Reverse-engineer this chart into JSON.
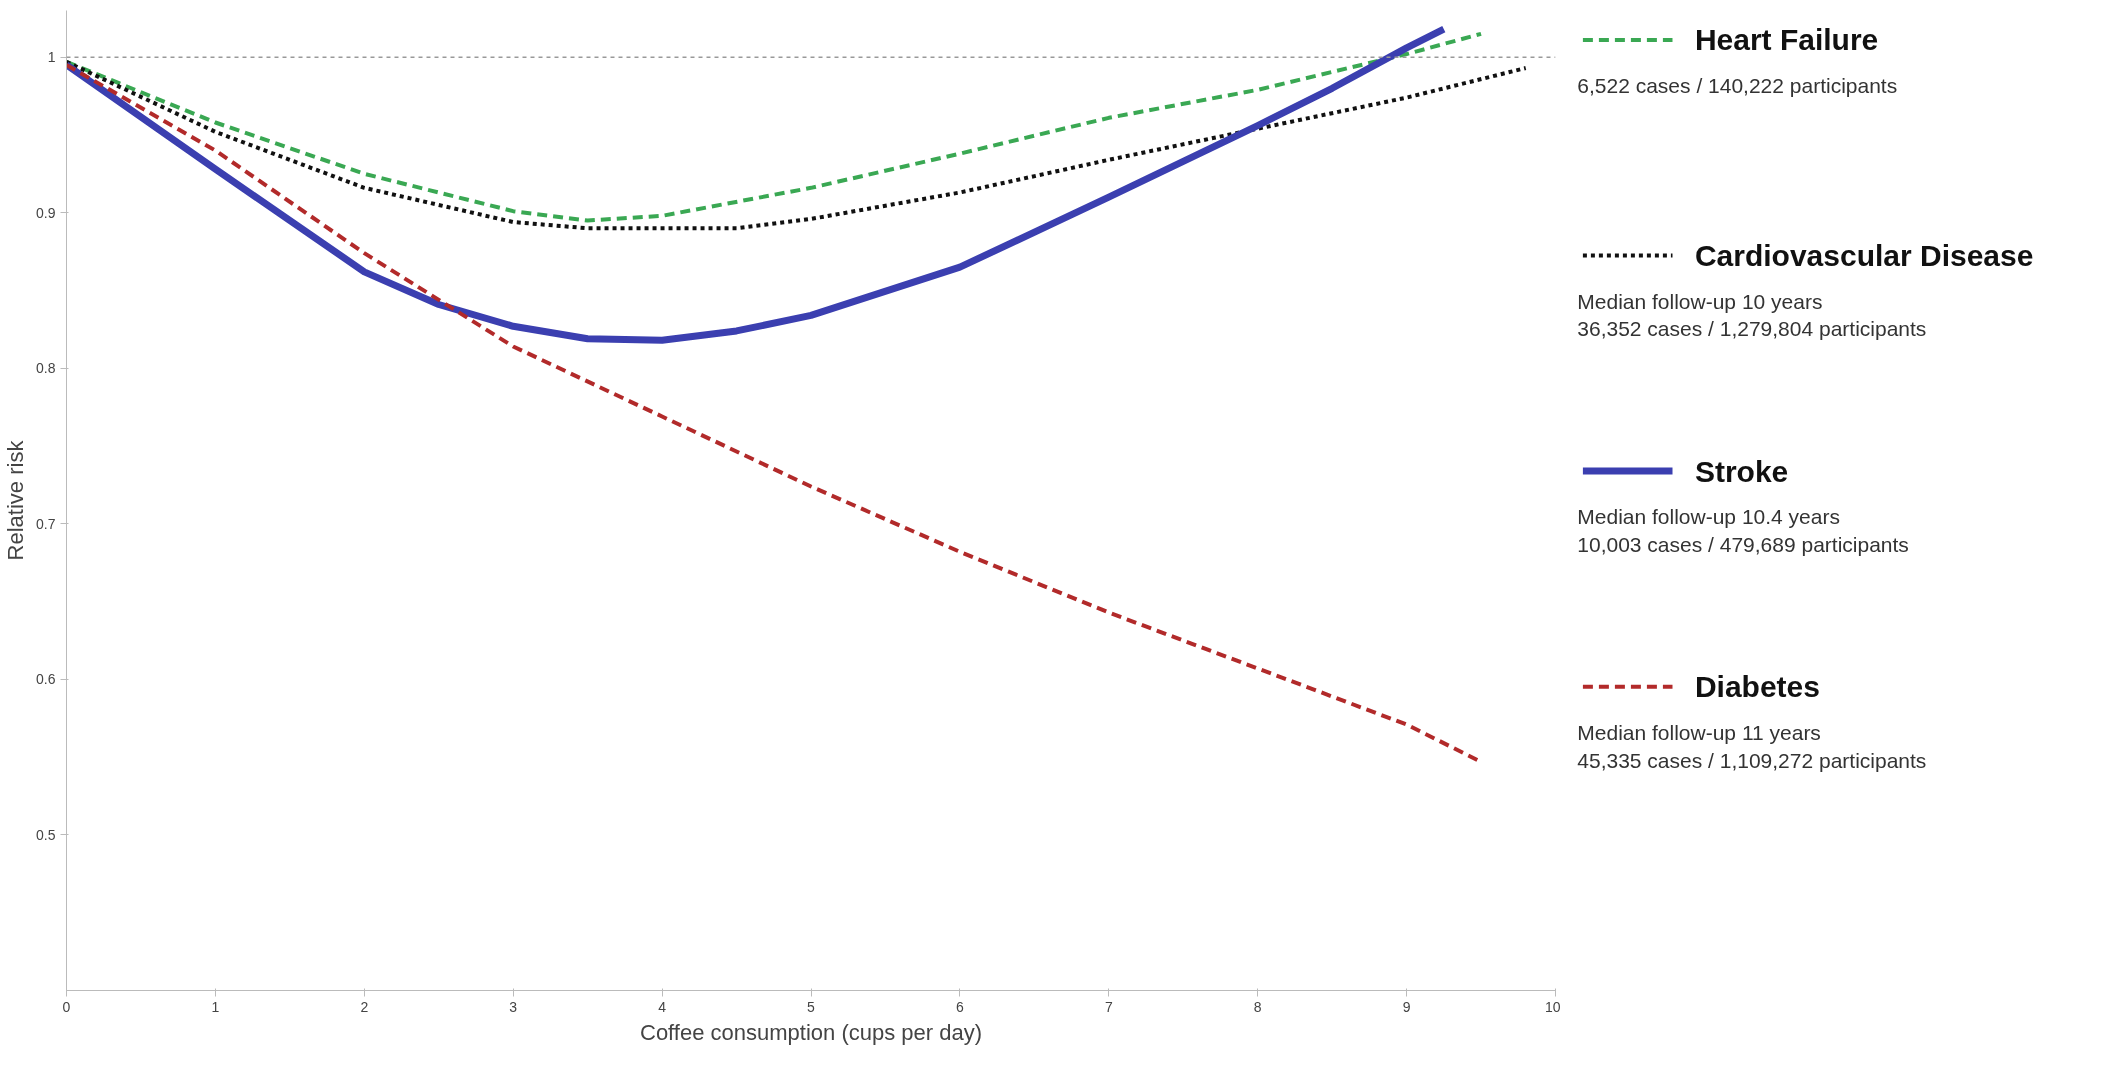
{
  "chart_data": {
    "type": "line",
    "xlabel": "Coffee consumption (cups per day)",
    "ylabel": "Relative risk",
    "xlim": [
      0,
      10
    ],
    "xticks": [
      0,
      1,
      2,
      3,
      4,
      5,
      6,
      7,
      8,
      9,
      10
    ],
    "ylim": [
      0.4,
      1.03
    ],
    "yticks": [
      0.5,
      0.6,
      0.7,
      0.8,
      0.9,
      1
    ],
    "grid": false,
    "legend": "right",
    "marker": "none",
    "ref_lines": [
      {
        "axis": "y",
        "value": 1,
        "label": null,
        "color": "#999999",
        "line_style": "dotted"
      }
    ],
    "series": [
      {
        "name": "Heart Failure",
        "color": "#3aa853",
        "line_style": "dashed",
        "x": [
          0,
          1,
          2,
          3,
          3.5,
          4,
          5,
          6,
          7,
          8,
          9,
          9.5
        ],
        "values": [
          0.997,
          0.958,
          0.925,
          0.901,
          0.895,
          0.898,
          0.916,
          0.938,
          0.961,
          0.979,
          1.002,
          1.015
        ]
      },
      {
        "name": "Cardiovascular Disease",
        "color": "#111111",
        "line_style": "dotted",
        "x": [
          0,
          1,
          2,
          3,
          3.5,
          4,
          4.5,
          5,
          6,
          7,
          8,
          9,
          9.8
        ],
        "values": [
          0.997,
          0.952,
          0.916,
          0.894,
          0.89,
          0.89,
          0.89,
          0.896,
          0.913,
          0.934,
          0.954,
          0.974,
          0.993
        ]
      },
      {
        "name": "Stroke",
        "color": "#3b3fb0",
        "line_style": "solid",
        "x": [
          0,
          1,
          2,
          2.5,
          3,
          3.5,
          4,
          4.5,
          5,
          6,
          7,
          8,
          8.5,
          9,
          9.25
        ],
        "values": [
          0.995,
          0.928,
          0.862,
          0.841,
          0.827,
          0.819,
          0.818,
          0.824,
          0.834,
          0.865,
          0.91,
          0.956,
          0.98,
          1.006,
          1.018
        ]
      },
      {
        "name": "Diabetes",
        "color": "#b22a2a",
        "line_style": "dashed",
        "x": [
          0,
          1,
          2,
          3,
          4,
          5,
          6,
          7,
          8,
          9,
          9.5
        ],
        "values": [
          0.995,
          0.94,
          0.874,
          0.814,
          0.769,
          0.724,
          0.682,
          0.643,
          0.607,
          0.571,
          0.547
        ]
      }
    ],
    "annotations": [
      "6,522 cases / 140,222 participants",
      "Median follow-up 10 years\n36,352 cases / 1,279,804 participants",
      "Median follow-up 10.4 years\n10,003 cases / 479,689 participants",
      "Median follow-up 11 years\n45,335 cases / 1,109,272 participants"
    ]
  }
}
